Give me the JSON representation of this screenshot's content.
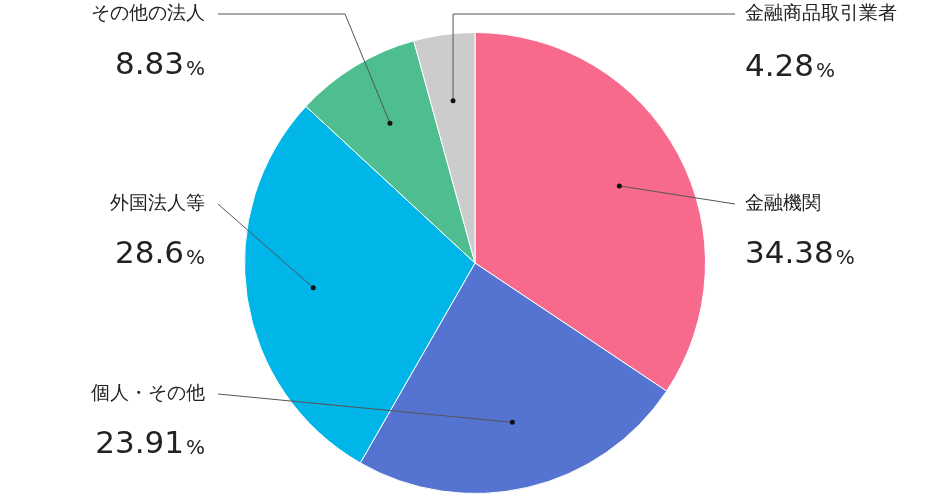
{
  "chart_data": {
    "type": "pie",
    "categories": [
      "金融機関",
      "個人・その他",
      "外国法人等",
      "その他の法人",
      "金融商品取引業者"
    ],
    "values": [
      34.38,
      23.91,
      28.6,
      8.83,
      4.28
    ],
    "value_labels": [
      "34.38%",
      "23.91%",
      "28.6%",
      "8.83%",
      "4.28%"
    ],
    "colors": [
      "#f76a8c",
      "#5574d2",
      "#00b5e8",
      "#4ebd8f",
      "#cccccc"
    ],
    "data_labels": true
  }
}
